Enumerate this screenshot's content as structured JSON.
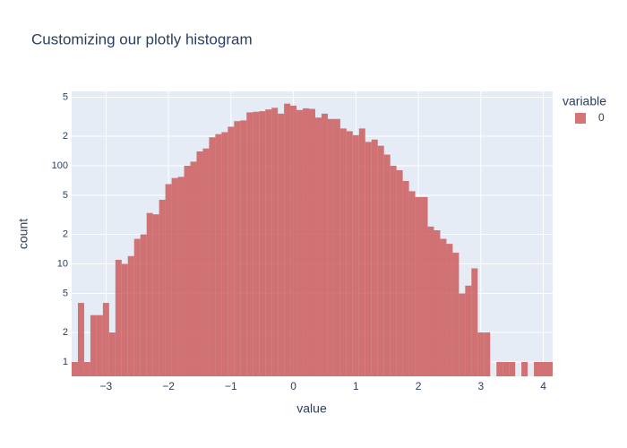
{
  "chart_data": {
    "type": "histogram",
    "title": "Customizing our plotly histogram",
    "x_label": "value",
    "y_label": "count",
    "legend_title": "variable",
    "log_y": true,
    "grid": true,
    "bins": [
      -3.55,
      -3.45,
      -3.35,
      -3.25,
      -3.15,
      -3.05,
      -2.95,
      -2.85,
      -2.75,
      -2.65,
      -2.55,
      -2.45,
      -2.35,
      -2.25,
      -2.15,
      -2.05,
      -1.95,
      -1.85,
      -1.75,
      -1.65,
      -1.55,
      -1.45,
      -1.35,
      -1.25,
      -1.15,
      -1.05,
      -0.95,
      -0.85,
      -0.75,
      -0.65,
      -0.55,
      -0.45,
      -0.35,
      -0.25,
      -0.15,
      -0.05,
      0.05,
      0.15,
      0.25,
      0.35,
      0.45,
      0.55,
      0.65,
      0.75,
      0.85,
      0.95,
      1.05,
      1.15,
      1.25,
      1.35,
      1.45,
      1.55,
      1.65,
      1.75,
      1.85,
      1.95,
      2.05,
      2.15,
      2.25,
      2.35,
      2.45,
      2.55,
      2.65,
      2.75,
      2.85,
      2.95,
      3.05,
      3.15,
      3.25,
      3.35,
      3.45,
      3.55,
      3.65,
      3.75,
      3.85,
      3.95,
      4.05,
      4.15
    ],
    "series": [
      {
        "name": "0",
        "color": "#cd5c5c",
        "values": [
          1,
          4,
          1,
          3,
          3,
          4,
          2,
          11,
          10,
          12,
          18,
          20,
          33,
          32,
          45,
          65,
          75,
          77,
          100,
          110,
          140,
          150,
          195,
          210,
          220,
          250,
          285,
          290,
          350,
          355,
          360,
          375,
          390,
          340,
          430,
          410,
          370,
          385,
          380,
          310,
          340,
          300,
          300,
          240,
          225,
          205,
          240,
          175,
          185,
          160,
          130,
          100,
          90,
          70,
          55,
          48,
          48,
          24,
          22,
          18,
          16,
          13,
          5,
          6,
          9,
          2,
          2,
          0,
          1,
          1,
          1,
          0,
          1,
          0,
          1,
          1,
          1
        ]
      }
    ],
    "xlim": [
      -3.55,
      4.15
    ],
    "ylim": [
      0.714,
      573
    ],
    "xticks": [
      {
        "value": -3,
        "label": "−3"
      },
      {
        "value": -2,
        "label": "−2"
      },
      {
        "value": -1,
        "label": "−1"
      },
      0,
      1,
      2,
      3,
      4
    ],
    "yticks": [
      1,
      2,
      5,
      10,
      {
        "value": 20,
        "label": "2"
      },
      {
        "value": 50,
        "label": "5"
      },
      100,
      {
        "value": 200,
        "label": "2"
      },
      {
        "value": 500,
        "label": "5"
      }
    ]
  }
}
